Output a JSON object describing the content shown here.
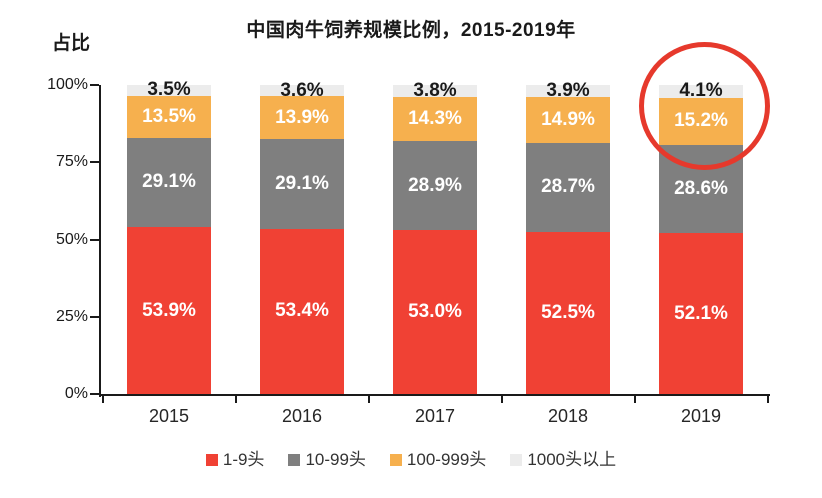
{
  "title": "中国肉牛饲养规模比例，2015-2019年",
  "y_axis_label": "占比",
  "colors": {
    "series_red": "#f04134",
    "series_gray": "#7f7f7f",
    "series_orange": "#f6b04e",
    "series_lightgray": "#ececec",
    "annotation_red": "#e6392c",
    "axis": "#1a1a1a"
  },
  "chart_data": {
    "type": "bar",
    "stacked": true,
    "title": "中国肉牛饲养规模比例，2015-2019年",
    "xlabel": "",
    "ylabel": "占比",
    "categories": [
      "2015",
      "2016",
      "2017",
      "2018",
      "2019"
    ],
    "series": [
      {
        "name": "1-9头",
        "color": "#f04134",
        "label_color": "#ffffff",
        "values": [
          53.9,
          53.4,
          53.0,
          52.5,
          52.1
        ]
      },
      {
        "name": "10-99头",
        "color": "#7f7f7f",
        "label_color": "#ffffff",
        "values": [
          29.1,
          29.1,
          28.9,
          28.7,
          28.6
        ]
      },
      {
        "name": "100-999头",
        "color": "#f6b04e",
        "label_color": "#ffffff",
        "values": [
          13.5,
          13.9,
          14.3,
          14.9,
          15.2
        ]
      },
      {
        "name": "1000头以上",
        "color": "#ececec",
        "label_color": "#1a1a1a",
        "values": [
          3.5,
          3.6,
          3.8,
          3.9,
          4.1
        ]
      }
    ],
    "y_ticks": [
      {
        "label": "0%",
        "value": 0
      },
      {
        "label": "25%",
        "value": 25
      },
      {
        "label": "50%",
        "value": 50
      },
      {
        "label": "75%",
        "value": 75
      },
      {
        "label": "100%",
        "value": 100
      }
    ],
    "ylim": [
      0,
      100
    ],
    "value_suffix": "%",
    "grid": false,
    "legend_position": "bottom",
    "annotation": {
      "type": "circle",
      "target_category": "2019",
      "note": "highlights top segments (15.2% and 4.1%) of 2019 bar",
      "color": "#e6392c"
    }
  }
}
